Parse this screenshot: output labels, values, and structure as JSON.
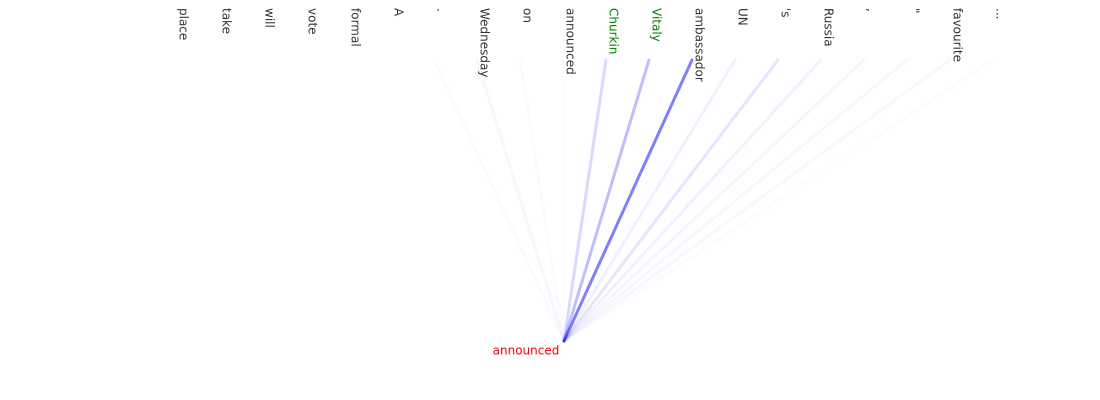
{
  "query": {
    "label": "announced",
    "color": "#ff0000"
  },
  "line_color": "#0000ff",
  "tokens": [
    {
      "label": "place",
      "weight": 0.0,
      "color": "#333333"
    },
    {
      "label": "take",
      "weight": 0.0,
      "color": "#333333"
    },
    {
      "label": "will",
      "weight": 0.0,
      "color": "#333333"
    },
    {
      "label": "vote",
      "weight": 0.0,
      "color": "#333333"
    },
    {
      "label": "formal",
      "weight": 0.0,
      "color": "#333333"
    },
    {
      "label": "A",
      "weight": 0.0,
      "color": "#333333"
    },
    {
      "label": ".",
      "weight": 0.02,
      "color": "#333333"
    },
    {
      "label": "Wednesday",
      "weight": 0.03,
      "color": "#333333"
    },
    {
      "label": "on",
      "weight": 0.02,
      "color": "#333333"
    },
    {
      "label": "announced",
      "weight": 0.01,
      "color": "#333333"
    },
    {
      "label": "Churkin",
      "weight": 0.15,
      "color": "#008000"
    },
    {
      "label": "Vitaly",
      "weight": 0.25,
      "color": "#008000"
    },
    {
      "label": "ambassador",
      "weight": 0.5,
      "color": "#333333"
    },
    {
      "label": "UN",
      "weight": 0.06,
      "color": "#333333"
    },
    {
      "label": "'s",
      "weight": 0.1,
      "color": "#333333"
    },
    {
      "label": "Russia",
      "weight": 0.06,
      "color": "#333333"
    },
    {
      "label": ",",
      "weight": 0.04,
      "color": "#333333"
    },
    {
      "label": "\"",
      "weight": 0.03,
      "color": "#333333"
    },
    {
      "label": "favourite",
      "weight": 0.03,
      "color": "#333333"
    },
    {
      "label": "...",
      "weight": 0.01,
      "color": "#333333"
    }
  ]
}
